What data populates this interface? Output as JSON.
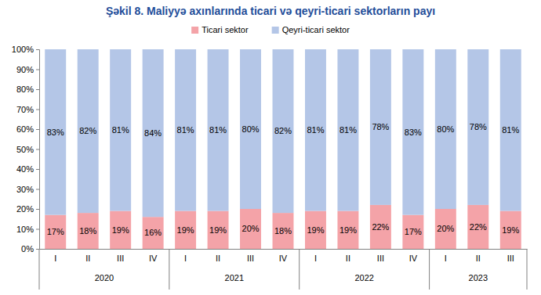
{
  "chart_data": {
    "type": "bar",
    "title": "Şəkil 8. Maliyyə axınlarında ticari və qeyri-ticari sektorların payı",
    "categories": [
      "I",
      "II",
      "III",
      "IV",
      "I",
      "II",
      "III",
      "IV",
      "I",
      "II",
      "III",
      "IV",
      "I",
      "II",
      "III"
    ],
    "category_groups": [
      {
        "label": "2020",
        "size": 4
      },
      {
        "label": "2021",
        "size": 4
      },
      {
        "label": "2022",
        "size": 4
      },
      {
        "label": "2023",
        "size": 3
      }
    ],
    "series": [
      {
        "name": "Ticari sektor",
        "color": "#f4a3a8",
        "values": [
          17,
          18,
          19,
          16,
          19,
          19,
          20,
          18,
          19,
          19,
          22,
          17,
          20,
          22,
          19
        ],
        "value_labels": [
          "17%",
          "18%",
          "19%",
          "16%",
          "19%",
          "19%",
          "20%",
          "18%",
          "19%",
          "19%",
          "22%",
          "17%",
          "20%",
          "22%",
          "19%"
        ]
      },
      {
        "name": "Qeyri-ticari sektor",
        "color": "#b4c6e7",
        "values": [
          83,
          82,
          81,
          84,
          81,
          81,
          80,
          82,
          81,
          81,
          78,
          83,
          80,
          78,
          81
        ],
        "value_labels": [
          "83%",
          "82%",
          "81%",
          "84%",
          "81%",
          "81%",
          "80%",
          "82%",
          "81%",
          "81%",
          "78%",
          "83%",
          "80%",
          "78%",
          "81%"
        ]
      }
    ],
    "ylim": [
      0,
      100
    ],
    "yticks": [
      {
        "value": 0,
        "label": "0%"
      },
      {
        "value": 10,
        "label": "10%"
      },
      {
        "value": 20,
        "label": "20%"
      },
      {
        "value": 30,
        "label": "30%"
      },
      {
        "value": 40,
        "label": "40%"
      },
      {
        "value": 50,
        "label": "50%"
      },
      {
        "value": 60,
        "label": "60%"
      },
      {
        "value": 70,
        "label": "70%"
      },
      {
        "value": 80,
        "label": "80%"
      },
      {
        "value": 90,
        "label": "90%"
      },
      {
        "value": 100,
        "label": "100%"
      }
    ],
    "stacked": true,
    "data_labels": true,
    "legend": "top",
    "grid": false
  }
}
